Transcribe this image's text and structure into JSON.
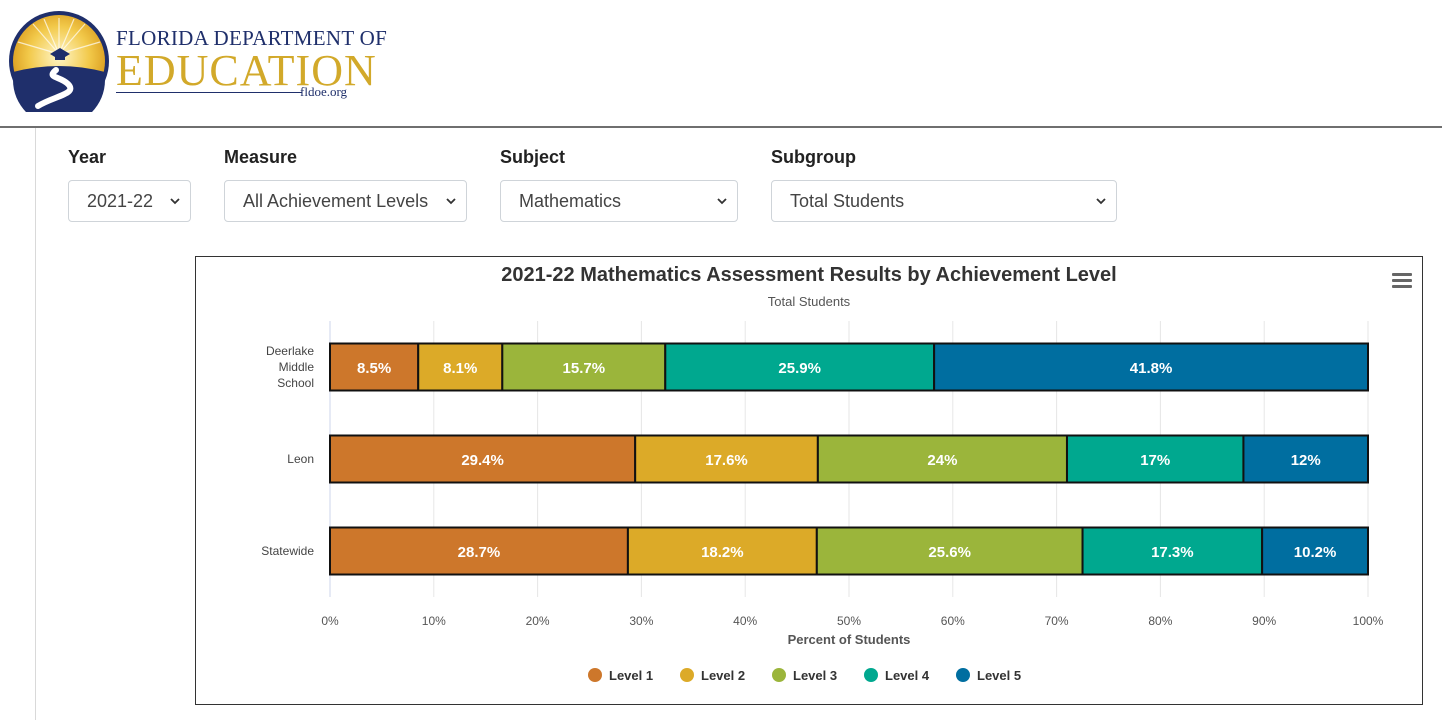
{
  "header": {
    "logo_line1": "FLORIDA DEPARTMENT OF",
    "logo_line2": "EDUCATION",
    "logo_site": "fldoe.org"
  },
  "filters": {
    "year": {
      "label": "Year",
      "value": "2021-22"
    },
    "measure": {
      "label": "Measure",
      "value": "All Achievement Levels"
    },
    "subject": {
      "label": "Subject",
      "value": "Mathematics"
    },
    "subgroup": {
      "label": "Subgroup",
      "value": "Total Students"
    }
  },
  "colors": {
    "level1": "#cd772b",
    "level2": "#dcaa28",
    "level3": "#9bb53b",
    "level4": "#00a88f",
    "level5": "#006ea0"
  },
  "chart_data": {
    "type": "bar",
    "orientation": "horizontal",
    "stacked": true,
    "title": "2021-22 Mathematics Assessment Results by Achievement Level",
    "subtitle": "Total Students",
    "xlabel": "Percent of Students",
    "ylabel": "",
    "xlim": [
      0,
      100
    ],
    "x_ticks": [
      "0%",
      "10%",
      "20%",
      "30%",
      "40%",
      "50%",
      "60%",
      "70%",
      "80%",
      "90%",
      "100%"
    ],
    "grid": true,
    "legend": "bottom",
    "categories": [
      [
        "Deerlake",
        "Middle",
        "School"
      ],
      [
        "Leon"
      ],
      [
        "Statewide"
      ]
    ],
    "series": [
      {
        "name": "Level 1",
        "color": "#cd772b",
        "values": [
          8.5,
          29.4,
          28.7
        ],
        "labels": [
          "8.5%",
          "29.4%",
          "28.7%"
        ]
      },
      {
        "name": "Level 2",
        "color": "#dcaa28",
        "values": [
          8.1,
          17.6,
          18.2
        ],
        "labels": [
          "8.1%",
          "17.6%",
          "18.2%"
        ]
      },
      {
        "name": "Level 3",
        "color": "#9bb53b",
        "values": [
          15.7,
          24,
          25.6
        ],
        "labels": [
          "15.7%",
          "24%",
          "25.6%"
        ]
      },
      {
        "name": "Level 4",
        "color": "#00a88f",
        "values": [
          25.9,
          17,
          17.3
        ],
        "labels": [
          "25.9%",
          "17%",
          "17.3%"
        ]
      },
      {
        "name": "Level 5",
        "color": "#006ea0",
        "values": [
          41.8,
          12,
          10.2
        ],
        "labels": [
          "41.8%",
          "12%",
          "10.2%"
        ]
      }
    ]
  },
  "icons": {
    "chart_menu": "hamburger-menu-icon",
    "select_arrow": "chevron-down-icon"
  }
}
